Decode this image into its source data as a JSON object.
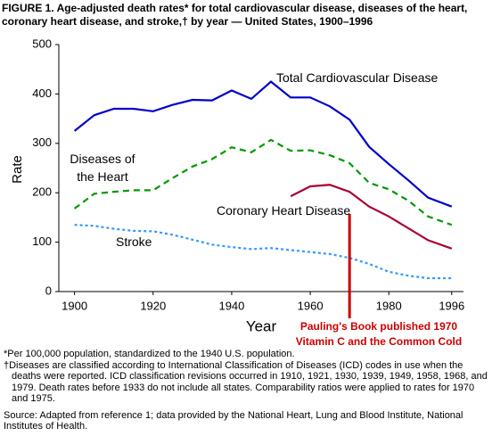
{
  "chart_data": {
    "type": "line",
    "title": "FIGURE 1. Age-adjusted death rates* for total cardiovascular disease, diseases of the heart, coronary heart disease, and stroke,† by year — United States, 1900–1996",
    "x_label": "Year",
    "y_label": "Rate",
    "x": [
      1900,
      1905,
      1910,
      1915,
      1920,
      1925,
      1930,
      1935,
      1940,
      1945,
      1950,
      1955,
      1960,
      1965,
      1970,
      1975,
      1980,
      1985,
      1990,
      1996
    ],
    "series": [
      {
        "name": "Total Cardiovascular Disease",
        "color": "#0000cc",
        "style": "solid",
        "values": [
          325,
          357,
          370,
          370,
          365,
          378,
          388,
          387,
          407,
          390,
          425,
          393,
          393,
          375,
          348,
          293,
          258,
          225,
          190,
          172
        ]
      },
      {
        "name": "Diseases of the Heart",
        "color": "#009900",
        "style": "dashed",
        "values": [
          168,
          198,
          202,
          205,
          205,
          230,
          253,
          268,
          292,
          282,
          307,
          285,
          286,
          276,
          260,
          220,
          207,
          184,
          152,
          135
        ]
      },
      {
        "name": "Coronary Heart Disease",
        "color": "#aa0033",
        "style": "solid",
        "values": [
          null,
          null,
          null,
          null,
          null,
          null,
          null,
          null,
          null,
          null,
          null,
          193,
          213,
          216,
          202,
          172,
          152,
          128,
          104,
          87
        ]
      },
      {
        "name": "Stroke",
        "color": "#3399ff",
        "style": "dotted",
        "values": [
          135,
          133,
          127,
          123,
          122,
          115,
          105,
          95,
          90,
          86,
          88,
          84,
          80,
          76,
          68,
          56,
          40,
          32,
          27,
          27
        ]
      }
    ],
    "xlim": [
      1896,
      1999
    ],
    "xticks": [
      1900,
      1920,
      1940,
      1960,
      1980,
      1996
    ],
    "ylim": [
      0,
      500
    ],
    "yticks": [
      0,
      100,
      200,
      300,
      400,
      500
    ],
    "annotation": {
      "x": 1970,
      "color": "#cc0000",
      "text": [
        "Pauling's Book published 1970",
        "Vitamin C and the Common Cold"
      ]
    },
    "footnotes": [
      "*Per 100,000 population, standardized to the 1940 U.S. population.",
      "†Diseases are classified according to International Classification of Diseases (ICD) codes in use when the deaths were reported. ICD classification revisions occurred in 1910, 1921, 1930, 1939, 1949, 1958, 1968, and 1979. Death rates before 1933 do not include all states. Comparability ratios were applied to rates for 1970 and 1975."
    ],
    "source": "Source: Adapted from reference 1; data provided by the National Heart, Lung and Blood Institute, National Institutes of Health."
  }
}
